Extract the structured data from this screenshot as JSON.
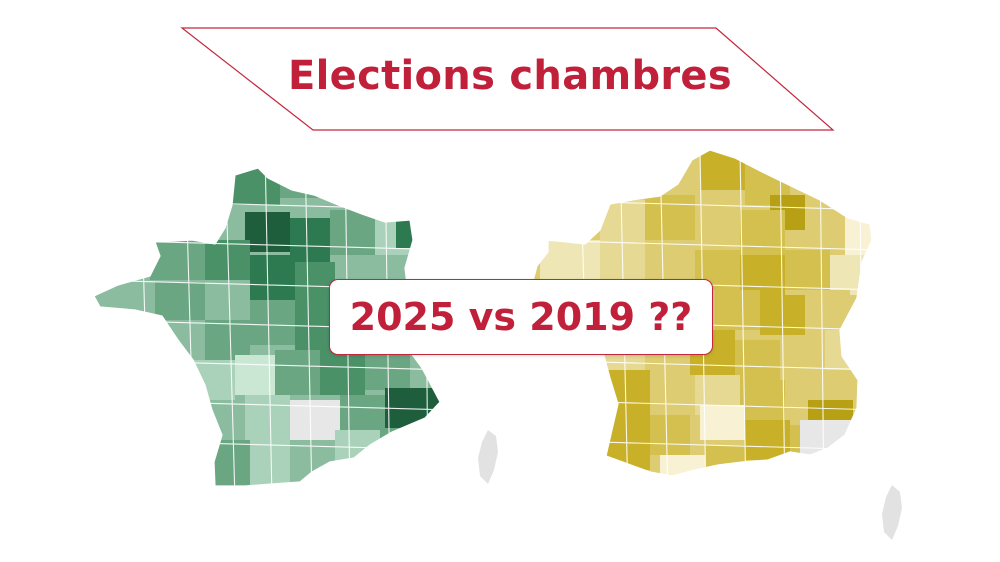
{
  "title": "Elections chambres",
  "comparison": "2025 vs 2019 ??",
  "colors": {
    "accent": "#c4273c",
    "title_text": "#c0203a",
    "map_left_palette": [
      "#1e5e3d",
      "#2e7a50",
      "#4a9168",
      "#6ba683",
      "#8cbc9f",
      "#aad1b9",
      "#c9e7d3"
    ],
    "map_right_palette": [
      "#b8a014",
      "#c8b128",
      "#d4c04e",
      "#ddcc72",
      "#e6d994",
      "#efe6b6",
      "#f8f1d4"
    ],
    "no_data": "#e7e7e7",
    "borders": "#ffffff"
  },
  "maps": [
    {
      "name": "map-2025-green",
      "theme": "green"
    },
    {
      "name": "map-2019-yellow",
      "theme": "yellow"
    }
  ]
}
